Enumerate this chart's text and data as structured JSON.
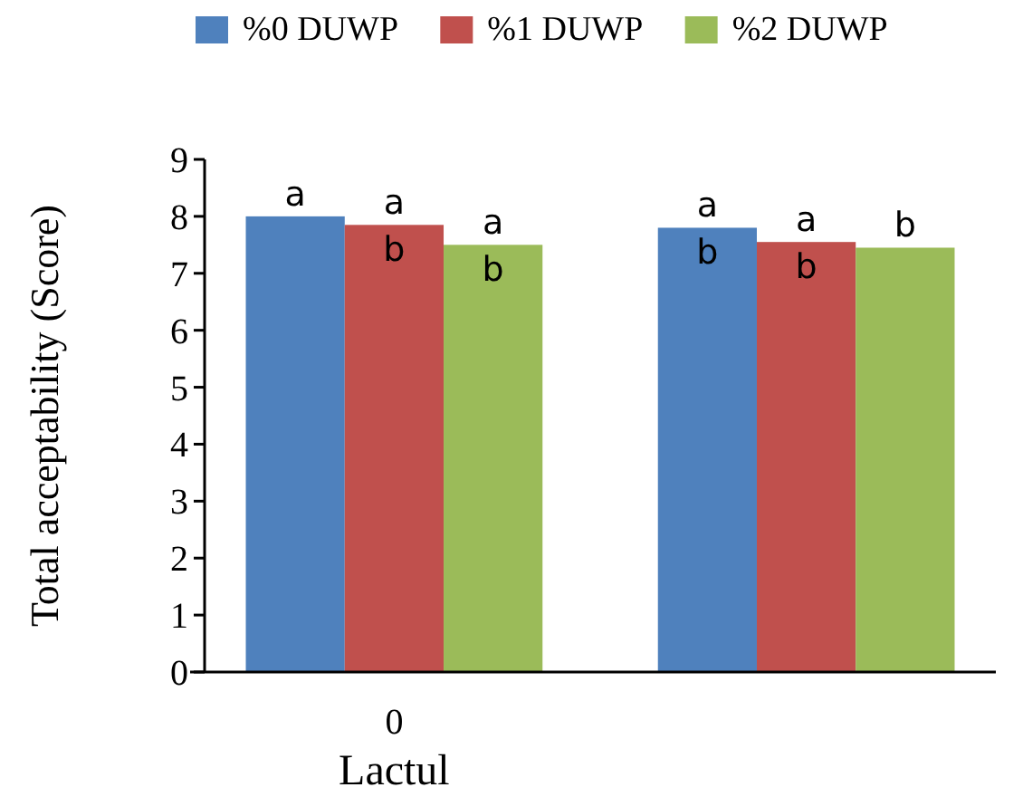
{
  "chart_data": {
    "type": "bar",
    "categories": [
      "0",
      null
    ],
    "xlabel": "Lactul",
    "ylabel": "Total acceptability (Score)",
    "ylim": [
      0,
      9
    ],
    "yticks": [
      0,
      1,
      2,
      3,
      4,
      5,
      6,
      7,
      8,
      9
    ],
    "legend": "top",
    "grid": false,
    "series": [
      {
        "name": "%0 DUWP",
        "color": "#4f81bd",
        "values": [
          8.0,
          7.8
        ],
        "value_labels": [
          "a",
          "a\nb"
        ]
      },
      {
        "name": "%1 DUWP",
        "color": "#c0504d",
        "values": [
          7.85,
          7.55
        ],
        "value_labels": [
          "a\nb",
          "a\nb"
        ]
      },
      {
        "name": "%2 DUWP",
        "color": "#9bbb59",
        "values": [
          7.5,
          7.45
        ],
        "value_labels": [
          "a\nb",
          "b"
        ]
      }
    ]
  }
}
